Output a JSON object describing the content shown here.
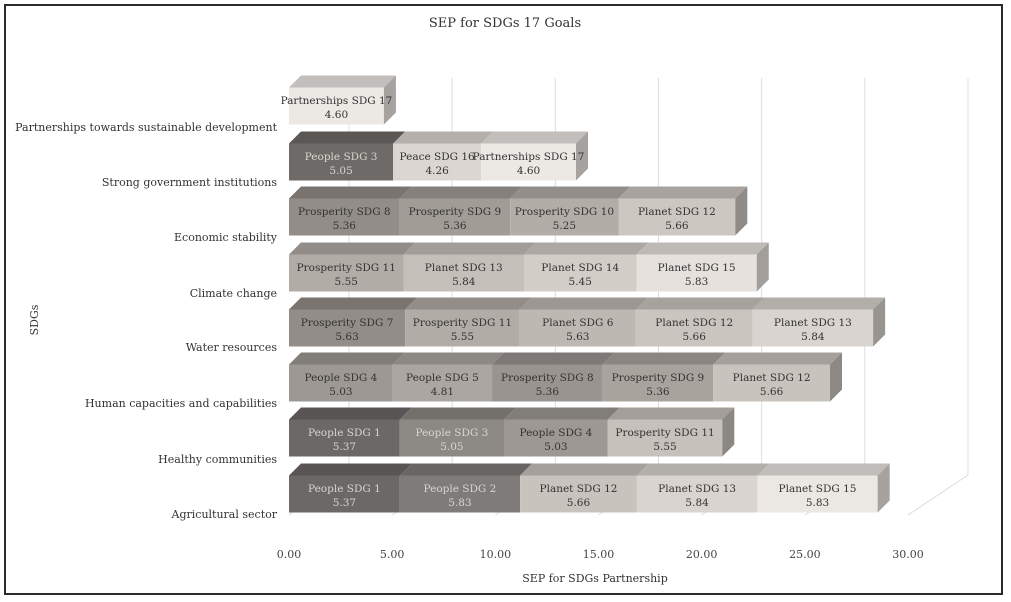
{
  "chart_data": {
    "type": "bar",
    "orientation": "horizontal",
    "stacked": true,
    "style": "3d",
    "title": "SEP for SDGs 17 Goals",
    "xlabel": "SEP for SDGs Partnership",
    "ylabel": "SDGs",
    "xlim": [
      0,
      30
    ],
    "xticks": [
      "0.00",
      "5.00",
      "10.00",
      "15.00",
      "20.00",
      "25.00",
      "30.00"
    ],
    "grid": true,
    "categories": [
      "Agricultural sector",
      "Healthy communities",
      "Human capacities and capabilities",
      "Water resources",
      "Climate change",
      "Economic stability",
      "Strong government institutions",
      "Partnerships towards sustainable development"
    ],
    "rows": [
      {
        "category": "Agricultural sector",
        "segments": [
          {
            "label": "People SDG 1",
            "value": 5.37,
            "value_text": "5.37",
            "color": "#6b6866"
          },
          {
            "label": "People SDG 2",
            "value": 5.83,
            "value_text": "5.83",
            "color": "#7f7b78"
          },
          {
            "label": "Planet SDG 12",
            "value": 5.66,
            "value_text": "5.66",
            "color": "#c9c3be"
          },
          {
            "label": "Planet SDG 13",
            "value": 5.84,
            "value_text": "5.84",
            "color": "#d9d4cf"
          },
          {
            "label": "Planet SDG 15",
            "value": 5.83,
            "value_text": "5.83",
            "color": "#ebe7e3"
          }
        ]
      },
      {
        "category": "Healthy communities",
        "segments": [
          {
            "label": "People SDG 1",
            "value": 5.37,
            "value_text": "5.37",
            "color": "#6b6866"
          },
          {
            "label": "People SDG 3",
            "value": 5.05,
            "value_text": "5.05",
            "color": "#8c8884"
          },
          {
            "label": "People SDG 4",
            "value": 5.03,
            "value_text": "5.03",
            "color": "#9d9894"
          },
          {
            "label": "Prosperity SDG 11",
            "value": 5.55,
            "value_text": "5.55",
            "color": "#c7c1bb"
          }
        ]
      },
      {
        "category": "Human capacities and capabilities",
        "segments": [
          {
            "label": "People SDG 4",
            "value": 5.03,
            "value_text": "5.03",
            "color": "#9d9894"
          },
          {
            "label": "People SDG 5",
            "value": 4.81,
            "value_text": "4.81",
            "color": "#aba6a1"
          },
          {
            "label": "Prosperity SDG 8",
            "value": 5.36,
            "value_text": "5.36",
            "color": "#9a9490"
          },
          {
            "label": "Prosperity SDG 9",
            "value": 5.36,
            "value_text": "5.36",
            "color": "#a9a39e"
          },
          {
            "label": "Planet SDG 12",
            "value": 5.66,
            "value_text": "5.66",
            "color": "#c9c3be"
          }
        ]
      },
      {
        "category": "Water resources",
        "segments": [
          {
            "label": "Prosperity SDG 7",
            "value": 5.63,
            "value_text": "5.63",
            "color": "#938d89"
          },
          {
            "label": "Prosperity SDG 11",
            "value": 5.55,
            "value_text": "5.55",
            "color": "#b2aca7"
          },
          {
            "label": "Planet SDG 6",
            "value": 5.63,
            "value_text": "5.63",
            "color": "#beb8b3"
          },
          {
            "label": "Planet SDG 12",
            "value": 5.66,
            "value_text": "5.66",
            "color": "#cbc5c0"
          },
          {
            "label": "Planet SDG 13",
            "value": 5.84,
            "value_text": "5.84",
            "color": "#d9d4cf"
          }
        ]
      },
      {
        "category": "Climate change",
        "segments": [
          {
            "label": "Prosperity SDG 11",
            "value": 5.55,
            "value_text": "5.55",
            "color": "#b2aca7"
          },
          {
            "label": "Planet SDG 13",
            "value": 5.84,
            "value_text": "5.84",
            "color": "#c5bfba"
          },
          {
            "label": "Planet SDG 14",
            "value": 5.45,
            "value_text": "5.45",
            "color": "#d3cdc8"
          },
          {
            "label": "Planet SDG 15",
            "value": 5.83,
            "value_text": "5.83",
            "color": "#e6e1dd"
          }
        ]
      },
      {
        "category": "Economic stability",
        "segments": [
          {
            "label": "Prosperity SDG 8",
            "value": 5.36,
            "value_text": "5.36",
            "color": "#938d89"
          },
          {
            "label": "Prosperity SDG 9",
            "value": 5.36,
            "value_text": "5.36",
            "color": "#a29c97"
          },
          {
            "label": "Prosperity SDG 10",
            "value": 5.25,
            "value_text": "5.25",
            "color": "#b3ada8"
          },
          {
            "label": "Planet SDG 12",
            "value": 5.66,
            "value_text": "5.66",
            "color": "#cdc7c2"
          }
        ]
      },
      {
        "category": "Strong government institutions",
        "segments": [
          {
            "label": "People SDG 3",
            "value": 5.05,
            "value_text": "5.05",
            "color": "#6e6a67"
          },
          {
            "label": "Peace SDG 16",
            "value": 4.26,
            "value_text": "4.26",
            "color": "#dbd6d1"
          },
          {
            "label": "Partnerships SDG 17",
            "value": 4.6,
            "value_text": "4.60",
            "color": "#ece8e4"
          }
        ]
      },
      {
        "category": "Partnerships towards sustainable development",
        "segments": [
          {
            "label": "Partnerships SDG 17",
            "value": 4.6,
            "value_text": "4.60",
            "color": "#ece8e4"
          }
        ]
      }
    ]
  }
}
